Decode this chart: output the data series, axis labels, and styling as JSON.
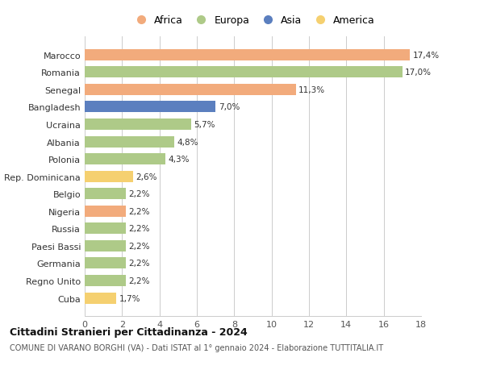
{
  "countries": [
    "Marocco",
    "Romania",
    "Senegal",
    "Bangladesh",
    "Ucraina",
    "Albania",
    "Polonia",
    "Rep. Dominicana",
    "Belgio",
    "Nigeria",
    "Russia",
    "Paesi Bassi",
    "Germania",
    "Regno Unito",
    "Cuba"
  ],
  "values": [
    17.4,
    17.0,
    11.3,
    7.0,
    5.7,
    4.8,
    4.3,
    2.6,
    2.2,
    2.2,
    2.2,
    2.2,
    2.2,
    2.2,
    1.7
  ],
  "labels": [
    "17,4%",
    "17,0%",
    "11,3%",
    "7,0%",
    "5,7%",
    "4,8%",
    "4,3%",
    "2,6%",
    "2,2%",
    "2,2%",
    "2,2%",
    "2,2%",
    "2,2%",
    "2,2%",
    "1,7%"
  ],
  "continents": [
    "Africa",
    "Europa",
    "Africa",
    "Asia",
    "Europa",
    "Europa",
    "Europa",
    "America",
    "Europa",
    "Africa",
    "Europa",
    "Europa",
    "Europa",
    "Europa",
    "America"
  ],
  "colors": {
    "Africa": "#F2AB7C",
    "Europa": "#AECA88",
    "Asia": "#5B7FBF",
    "America": "#F5D070"
  },
  "xlim": [
    0,
    18
  ],
  "xticks": [
    0,
    2,
    4,
    6,
    8,
    10,
    12,
    14,
    16,
    18
  ],
  "title": "Cittadini Stranieri per Cittadinanza - 2024",
  "subtitle": "COMUNE DI VARANO BORGHI (VA) - Dati ISTAT al 1° gennaio 2024 - Elaborazione TUTTITALIA.IT",
  "background_color": "#ffffff",
  "grid_color": "#cccccc",
  "bar_height": 0.65,
  "legend_order": [
    "Africa",
    "Europa",
    "Asia",
    "America"
  ]
}
